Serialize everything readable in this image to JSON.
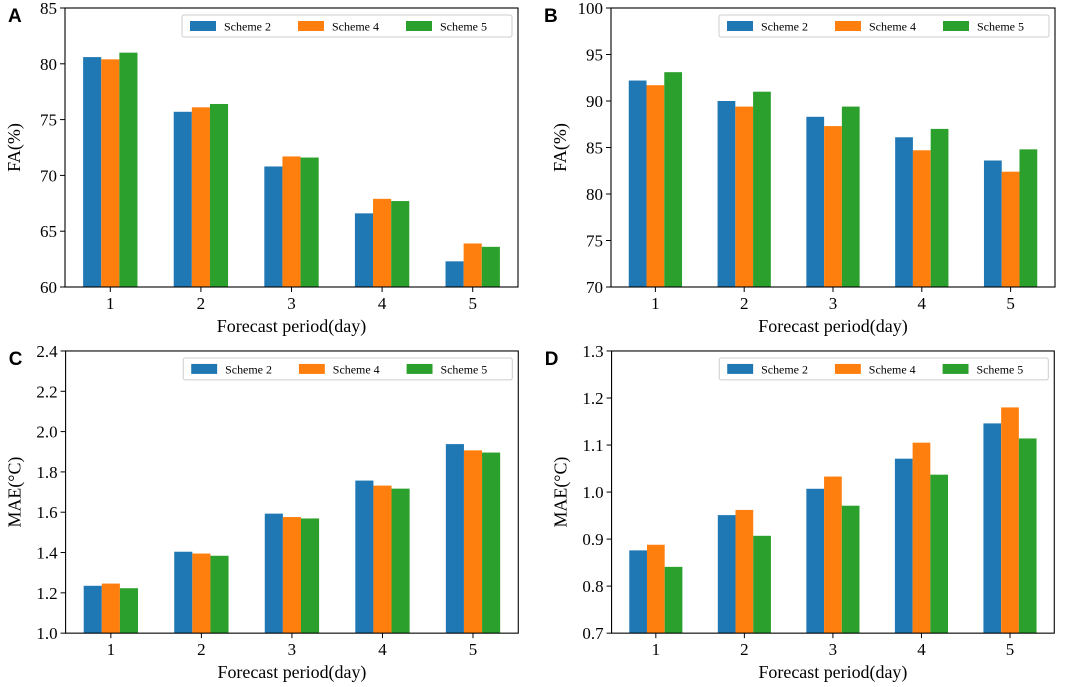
{
  "chart_data": [
    {
      "panel": "A",
      "type": "bar",
      "categories": [
        "1",
        "2",
        "3",
        "4",
        "5"
      ],
      "series": [
        {
          "name": "Scheme 2",
          "color": "#1f77b4",
          "values": [
            80.6,
            75.7,
            70.8,
            66.6,
            62.3
          ]
        },
        {
          "name": "Scheme 4",
          "color": "#ff7f0e",
          "values": [
            80.4,
            76.1,
            71.7,
            67.9,
            63.9
          ]
        },
        {
          "name": "Scheme 5",
          "color": "#2ca02c",
          "values": [
            81.0,
            76.4,
            71.6,
            67.7,
            63.6
          ]
        }
      ],
      "xlabel": "Forecast period(day)",
      "ylabel": "FA(%)",
      "ylim": [
        60,
        85
      ],
      "yticks": [
        "60",
        "65",
        "70",
        "75",
        "80",
        "85"
      ],
      "legend": "top-right"
    },
    {
      "panel": "B",
      "type": "bar",
      "categories": [
        "1",
        "2",
        "3",
        "4",
        "5"
      ],
      "series": [
        {
          "name": "Scheme 2",
          "color": "#1f77b4",
          "values": [
            92.2,
            90.0,
            88.3,
            86.1,
            83.6
          ]
        },
        {
          "name": "Scheme 4",
          "color": "#ff7f0e",
          "values": [
            91.7,
            89.4,
            87.3,
            84.7,
            82.4
          ]
        },
        {
          "name": "Scheme 5",
          "color": "#2ca02c",
          "values": [
            93.1,
            91.0,
            89.4,
            87.0,
            84.8
          ]
        }
      ],
      "xlabel": "Forecast period(day)",
      "ylabel": "FA(%)",
      "ylim": [
        70,
        100
      ],
      "yticks": [
        "70",
        "75",
        "80",
        "85",
        "90",
        "95",
        "100"
      ],
      "legend": "top-right"
    },
    {
      "panel": "C",
      "type": "bar",
      "categories": [
        "1",
        "2",
        "3",
        "4",
        "5"
      ],
      "series": [
        {
          "name": "Scheme 2",
          "color": "#1f77b4",
          "values": [
            1.235,
            1.404,
            1.593,
            1.757,
            1.938
          ]
        },
        {
          "name": "Scheme 4",
          "color": "#ff7f0e",
          "values": [
            1.246,
            1.395,
            1.576,
            1.732,
            1.907
          ]
        },
        {
          "name": "Scheme 5",
          "color": "#2ca02c",
          "values": [
            1.223,
            1.384,
            1.569,
            1.717,
            1.896
          ]
        }
      ],
      "xlabel": "Forecast period(day)",
      "ylabel": "MAE(°C)",
      "ylim": [
        1.0,
        2.4
      ],
      "yticks": [
        "1.0",
        "1.2",
        "1.4",
        "1.6",
        "1.8",
        "2.0",
        "2.2",
        "2.4"
      ],
      "legend": "top-right"
    },
    {
      "panel": "D",
      "type": "bar",
      "categories": [
        "1",
        "2",
        "3",
        "4",
        "5"
      ],
      "series": [
        {
          "name": "Scheme 2",
          "color": "#1f77b4",
          "values": [
            0.876,
            0.951,
            1.007,
            1.071,
            1.146
          ]
        },
        {
          "name": "Scheme 4",
          "color": "#ff7f0e",
          "values": [
            0.888,
            0.962,
            1.033,
            1.105,
            1.18
          ]
        },
        {
          "name": "Scheme 5",
          "color": "#2ca02c",
          "values": [
            0.841,
            0.907,
            0.971,
            1.037,
            1.114
          ]
        }
      ],
      "xlabel": "Forecast period(day)",
      "ylabel": "MAE(°C)",
      "ylim": [
        0.7,
        1.3
      ],
      "yticks": [
        "0.7",
        "0.8",
        "0.9",
        "1.0",
        "1.1",
        "1.2",
        "1.3"
      ],
      "legend": "top-right"
    }
  ]
}
